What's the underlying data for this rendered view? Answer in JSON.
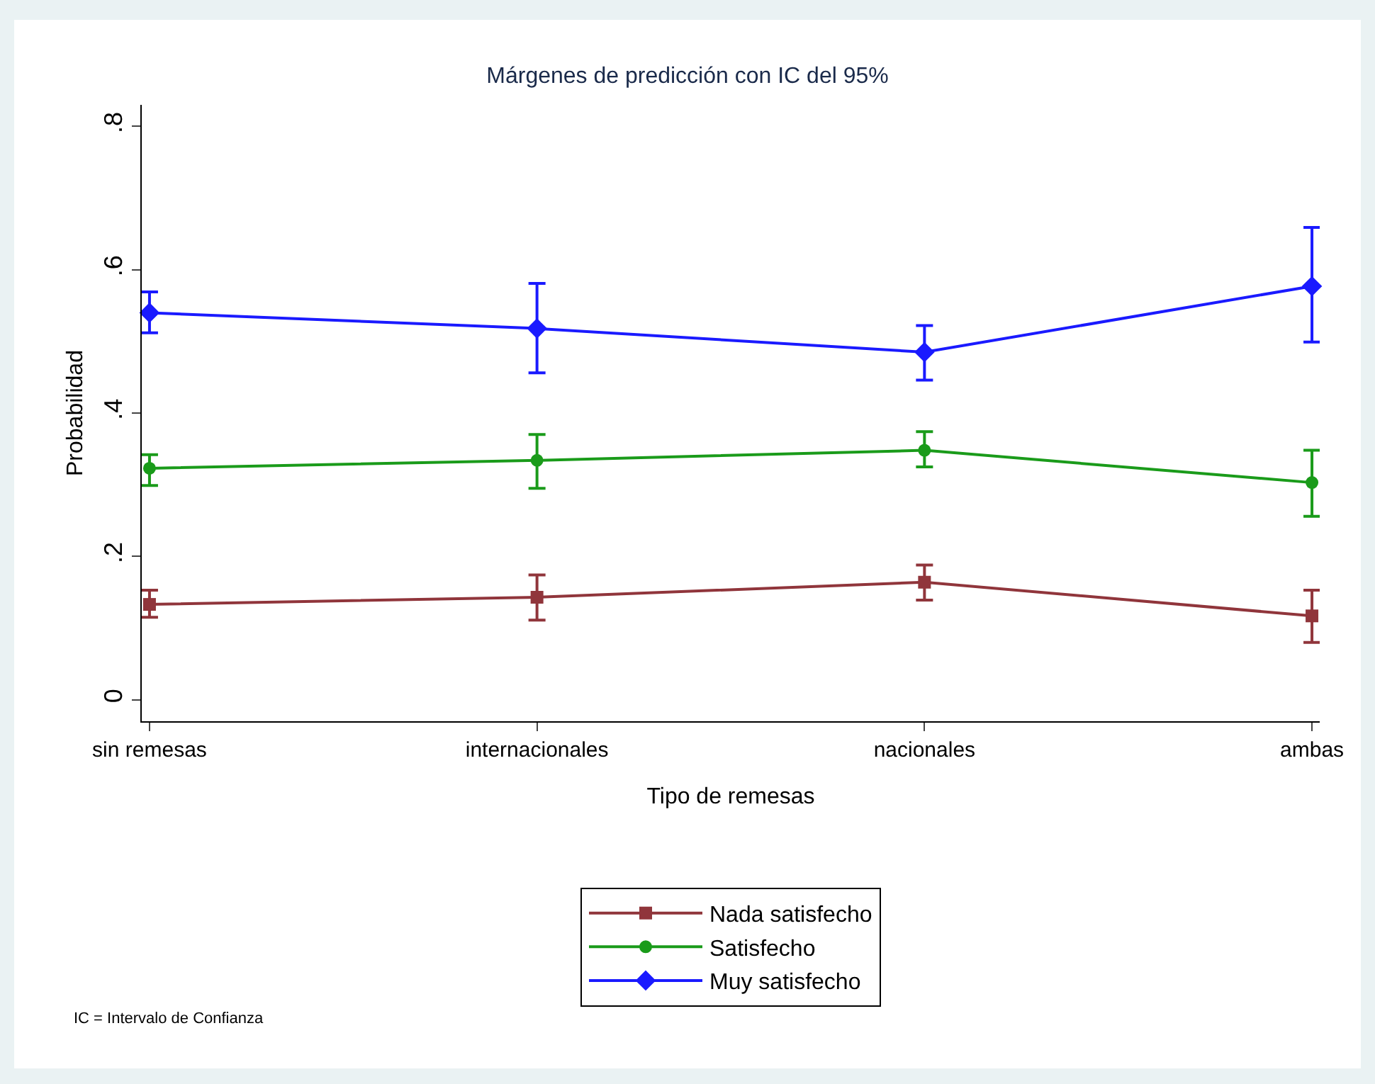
{
  "chart_data": {
    "type": "line",
    "title": "Márgenes de predicción con IC del 95%",
    "xlabel": "Tipo de remesas",
    "ylabel": "Probabilidad",
    "categories": [
      "sin remesas",
      "internacionales",
      "nacionales",
      "ambas"
    ],
    "series": [
      {
        "name": "Nada satisfecho",
        "color": "#90353b",
        "marker": "square",
        "values": [
          0.133,
          0.143,
          0.164,
          0.117
        ],
        "errors": [
          [
            0.115,
            0.153
          ],
          [
            0.111,
            0.174
          ],
          [
            0.139,
            0.188
          ],
          [
            0.08,
            0.153
          ]
        ]
      },
      {
        "name": "Satisfecho",
        "color": "#1a9b1a",
        "marker": "circle",
        "values": [
          0.323,
          0.334,
          0.348,
          0.303
        ],
        "errors": [
          [
            0.299,
            0.342
          ],
          [
            0.295,
            0.37
          ],
          [
            0.325,
            0.374
          ],
          [
            0.256,
            0.348
          ]
        ]
      },
      {
        "name": "Muy satisfecho",
        "color": "#1a1aff",
        "marker": "diamond",
        "values": [
          0.54,
          0.518,
          0.485,
          0.577
        ],
        "errors": [
          [
            0.512,
            0.569
          ],
          [
            0.456,
            0.581
          ],
          [
            0.446,
            0.522
          ],
          [
            0.499,
            0.659
          ]
        ]
      }
    ],
    "ylim": [
      -0.03,
      0.83
    ],
    "yticks": [
      {
        "value": 0,
        "label": "0"
      },
      {
        "value": 0.2,
        "label": ".2"
      },
      {
        "value": 0.4,
        "label": ".4"
      },
      {
        "value": 0.6,
        "label": ".6"
      },
      {
        "value": 0.8,
        "label": ".8"
      }
    ],
    "grid": false,
    "legend": "bottom",
    "line_style": "solid",
    "annotations": [
      "IC = Intervalo de Confianza"
    ]
  }
}
